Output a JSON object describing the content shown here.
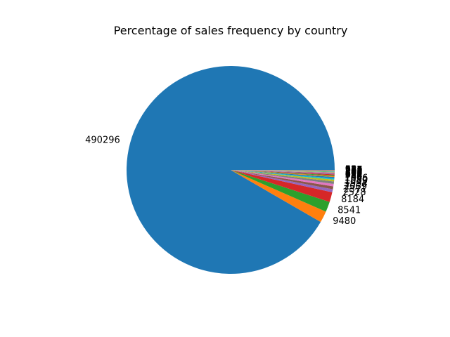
{
  "chart_data": {
    "type": "pie",
    "title": "Percentage of sales frequency by country",
    "slices": [
      {
        "label": "490296",
        "value": 490296,
        "color": "#1f77b4"
      },
      {
        "label": "9480",
        "value": 9480,
        "color": "#ff7f0e"
      },
      {
        "label": "8541",
        "value": 8541,
        "color": "#2ca02c"
      },
      {
        "label": "8184",
        "value": 8184,
        "color": "#d62728"
      },
      {
        "label": "2528",
        "value": 2528,
        "color": "#9467bd"
      },
      {
        "label": "2371",
        "value": 2371,
        "color": "#8c564b"
      },
      {
        "label": "2069",
        "value": 2069,
        "color": "#e377c2"
      },
      {
        "label": "1994",
        "value": 1994,
        "color": "#7f7f7f"
      },
      {
        "label": "1519",
        "value": 1519,
        "color": "#bcbd22"
      },
      {
        "label": "1080",
        "value": 1080,
        "color": "#17becf"
      },
      {
        "label": "1066",
        "value": 1066,
        "color": "#1f77b4"
      },
      {
        "label": "748",
        "value": 748,
        "color": "#ff7f0e"
      },
      {
        "label": "734",
        "value": 734,
        "color": "#2ca02c"
      },
      {
        "label": "694",
        "value": 694,
        "color": "#d62728"
      },
      {
        "label": "572",
        "value": 572,
        "color": "#9467bd"
      },
      {
        "label": "490",
        "value": 490,
        "color": "#8c564b"
      },
      {
        "label": "358",
        "value": 358,
        "color": "#e377c2"
      },
      {
        "label": "347",
        "value": 347,
        "color": "#7f7f7f"
      },
      {
        "label": "302",
        "value": 302,
        "color": "#bcbd22"
      },
      {
        "label": "295",
        "value": 295,
        "color": "#17becf"
      },
      {
        "label": "288",
        "value": 288,
        "color": "#1f77b4"
      },
      {
        "label": "270",
        "value": 270,
        "color": "#ff7f0e"
      },
      {
        "label": "232",
        "value": 232,
        "color": "#2ca02c"
      },
      {
        "label": "151",
        "value": 151,
        "color": "#d62728"
      },
      {
        "label": "127",
        "value": 127,
        "color": "#9467bd"
      },
      {
        "label": "94",
        "value": 94,
        "color": "#8c564b"
      },
      {
        "label": "62",
        "value": 62,
        "color": "#e377c2"
      },
      {
        "label": "58",
        "value": 58,
        "color": "#7f7f7f"
      },
      {
        "label": "35",
        "value": 35,
        "color": "#bcbd22"
      }
    ]
  }
}
